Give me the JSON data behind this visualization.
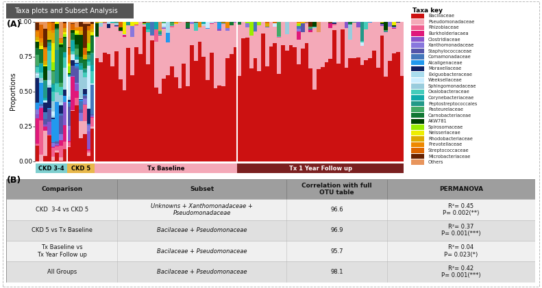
{
  "title_box": "Taxa plots and Subset Analysis",
  "panel_a_label": "(A)",
  "panel_b_label": "(B)",
  "legend_title": "Taxa key",
  "taxa_names": [
    "Bacillaceae",
    "Pseudomonadaceae",
    "Rhizobiaceae",
    "Burkholderiacaea",
    "Clostridiaceae",
    "Xanthomonadaceae",
    "Staphylococcaceae",
    "Comamonadaceae",
    "Alcaligenaceae",
    "Moraxellaceae",
    "Exiguobacteraceae",
    "Weeksellaceae",
    "Sphingomonadaceae",
    "Oxalobacteraceae",
    "Corynebacteriaceae",
    "Peptostreptococcales",
    "Pasteurelaceae",
    "Carnobacteriaceae",
    "AKW781",
    "Spirosomaceae",
    "Neisseriaceae",
    "Rhodobacteriaceae",
    "Prevotellaceae",
    "Streptococcaceae",
    "Microbacteriaceae",
    "Others"
  ],
  "taxa_colors": [
    "#cc1111",
    "#f4a9b8",
    "#f06090",
    "#e0187a",
    "#8855cc",
    "#8877dd",
    "#5555aa",
    "#4477bb",
    "#2299ee",
    "#112266",
    "#aaddee",
    "#cceeff",
    "#99ccdd",
    "#44ccbb",
    "#11aaaa",
    "#229988",
    "#44aa66",
    "#117733",
    "#004400",
    "#99ee00",
    "#eeee00",
    "#ddaa00",
    "#ee8800",
    "#dd6600",
    "#662200",
    "#e8955c"
  ],
  "group_labels": [
    "CKD 3-4",
    "CKD 5",
    "Tx Baseline",
    "Tx 1 Year Follow up"
  ],
  "group_colors": [
    "#7ecfcf",
    "#e8b84b",
    "#f4a9b8",
    "#7a2020"
  ],
  "group_label_text_colors": [
    "#000000",
    "#000000",
    "#000000",
    "#ffffff"
  ],
  "ylabel": "Proportions",
  "ylim": [
    0.0,
    1.0
  ],
  "yticks": [
    0.0,
    0.25,
    0.5,
    0.75,
    1.0
  ],
  "table_header": [
    "Comparison",
    "Subset",
    "Correlation with full\nOTU table",
    "PERMANOVA"
  ],
  "table_rows": [
    [
      "CKD  3-4 vs CKD 5",
      "Unknowns + Xanthomonadaceae +\nPseudomonadaceae",
      "96.6",
      "R²= 0.45\nP= 0.002(**)"
    ],
    [
      "CKD 5 vs Tx Baseline",
      "Bacilaceae + Pseudomonaceae",
      "96.9",
      "R²= 0.37\nP= 0.001(***)"
    ],
    [
      "Tx Baseline vs\nTx Year Follow up",
      "Bacilaceae + Pseudomonaceae",
      "95.7",
      "R²= 0.04\nP= 0.023(*)"
    ],
    [
      "All Groups",
      "Bacilaceae + Pseudomonaceae",
      "98.1",
      "R²= 0.42\nP= 0.001(***)"
    ]
  ],
  "n_ckd34": 8,
  "n_ckd5": 7,
  "n_txbaseline": 36,
  "n_tx1yr": 42
}
